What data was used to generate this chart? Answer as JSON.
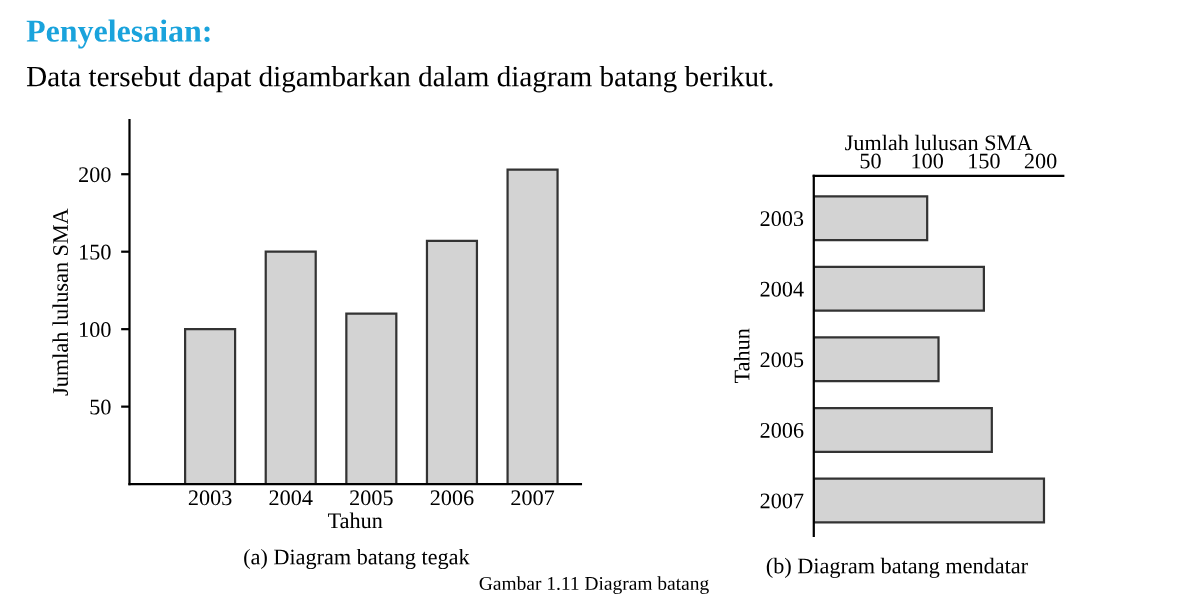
{
  "chart_data": [
    {
      "type": "bar",
      "title": "Penyelesaian:",
      "subtitle": "Data tersebut dapat digambarkan dalam diagram batang berikut.",
      "xlabel": "Tahun",
      "ylabel": "Jumlah lulusan SMA",
      "categories": [
        "2003",
        "2004",
        "2005",
        "2006",
        "2007"
      ],
      "values": [
        100,
        150,
        110,
        157,
        203
      ],
      "color": "#d3d3d3",
      "ylim": [
        0,
        235
      ],
      "yticks": [
        50,
        100,
        150,
        200
      ],
      "grid": false,
      "annotations": [
        "(a) Diagram batang tegak"
      ]
    },
    {
      "type": "bar",
      "orientation": "horizontal",
      "xlabel": "Jumlah lulusan SMA",
      "ylabel": "Tahun",
      "categories": [
        "2003",
        "2004",
        "2005",
        "2006",
        "2007"
      ],
      "values": [
        100,
        150,
        110,
        157,
        203
      ],
      "color": "#d3d3d3",
      "xlim": [
        0,
        220
      ],
      "xticks": [
        50,
        100,
        150,
        200
      ],
      "grid": false,
      "annotations": [
        "(b) Diagram batang mendatar",
        "Gambar 1.11 Diagram batang"
      ]
    }
  ]
}
